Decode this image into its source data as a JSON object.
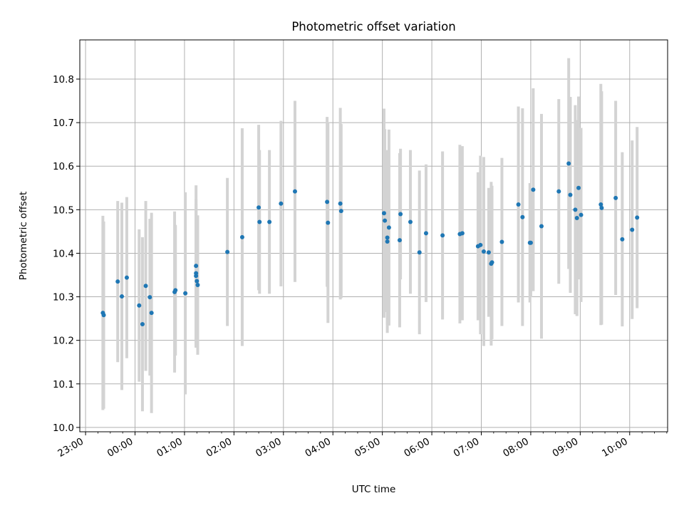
{
  "chart_data": {
    "type": "scatter",
    "title": "Photometric offset variation",
    "xlabel": "UTC time",
    "ylabel": "Photometric offset",
    "grid": true,
    "xlim": [
      "22:53",
      "10:46"
    ],
    "ylim": [
      9.99,
      10.89
    ],
    "x_ticks": [
      "23:00",
      "00:00",
      "01:00",
      "02:00",
      "03:00",
      "04:00",
      "05:00",
      "06:00",
      "07:00",
      "08:00",
      "09:00",
      "10:00"
    ],
    "y_ticks": [
      "10.0",
      "10.1",
      "10.2",
      "10.3",
      "10.4",
      "10.5",
      "10.6",
      "10.7",
      "10.8"
    ],
    "point_color": "#1f77b4",
    "errorbar_color": "#d3d3d3",
    "series": [
      {
        "x": [
          "23:21",
          "23:22",
          "23:39",
          "23:44",
          "23:50",
          "00:05",
          "00:09",
          "00:13",
          "00:18",
          "00:20",
          "00:48",
          "00:49",
          "01:01",
          "01:14",
          "01:14",
          "01:14",
          "01:15",
          "01:16",
          "01:52",
          "02:10",
          "02:30",
          "02:31",
          "02:43",
          "02:57",
          "03:14",
          "03:53",
          "03:54",
          "04:09",
          "04:10",
          "05:02",
          "05:03",
          "05:06",
          "05:06",
          "05:08",
          "05:21",
          "05:22",
          "05:34",
          "05:45",
          "05:53",
          "06:13",
          "06:34",
          "06:37",
          "06:56",
          "06:59",
          "07:03",
          "07:09",
          "07:12",
          "07:13",
          "07:25",
          "07:45",
          "07:50",
          "07:59",
          "08:00",
          "08:03",
          "08:13",
          "08:34",
          "08:46",
          "08:48",
          "08:54",
          "08:56",
          "08:58",
          "09:01",
          "09:25",
          "09:26",
          "09:43",
          "09:51",
          "10:03",
          "10:09"
        ],
        "y": [
          10.263,
          10.258,
          10.335,
          10.301,
          10.344,
          10.28,
          10.237,
          10.325,
          10.299,
          10.263,
          10.311,
          10.315,
          10.308,
          10.371,
          10.354,
          10.348,
          10.336,
          10.327,
          10.403,
          10.437,
          10.505,
          10.472,
          10.472,
          10.514,
          10.542,
          10.518,
          10.47,
          10.514,
          10.497,
          10.492,
          10.475,
          10.436,
          10.427,
          10.459,
          10.43,
          10.49,
          10.472,
          10.402,
          10.446,
          10.441,
          10.444,
          10.446,
          10.416,
          10.419,
          10.404,
          10.402,
          10.376,
          10.379,
          10.426,
          10.512,
          10.483,
          10.424,
          10.424,
          10.546,
          10.462,
          10.542,
          10.606,
          10.534,
          10.5,
          10.481,
          10.55,
          10.488,
          10.512,
          10.504,
          10.527,
          10.432,
          10.454,
          10.482
        ],
        "err": [
          0.223,
          0.215,
          0.185,
          0.215,
          0.185,
          0.175,
          0.2,
          0.195,
          0.18,
          0.23,
          0.185,
          0.15,
          0.232,
          0.185,
          0.17,
          0.165,
          0.15,
          0.16,
          0.17,
          0.25,
          0.19,
          0.165,
          0.165,
          0.19,
          0.208,
          0.195,
          0.23,
          0.22,
          0.2,
          0.24,
          0.21,
          0.2,
          0.21,
          0.225,
          0.2,
          0.15,
          0.165,
          0.188,
          0.158,
          0.193,
          0.205,
          0.2,
          0.17,
          0.205,
          0.217,
          0.148,
          0.188,
          0.176,
          0.193,
          0.225,
          0.25,
          0.137,
          0.125,
          0.233,
          0.258,
          0.212,
          0.242,
          0.225,
          0.24,
          0.225,
          0.21,
          0.2,
          0.277,
          0.268,
          0.223,
          0.2,
          0.205,
          0.208
        ]
      }
    ]
  }
}
